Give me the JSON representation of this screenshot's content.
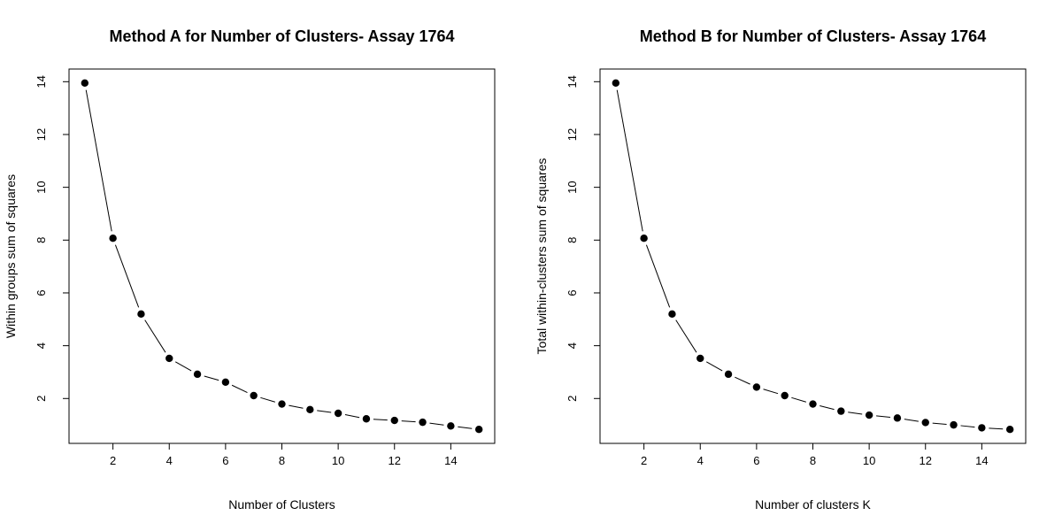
{
  "chart_data": [
    {
      "type": "line",
      "title": "Method A for Number of Clusters- Assay 1764",
      "xlabel": "Number of Clusters",
      "ylabel": "Within groups sum of squares",
      "x": [
        1,
        2,
        3,
        4,
        5,
        6,
        7,
        8,
        9,
        10,
        11,
        12,
        13,
        14,
        15
      ],
      "series": [
        {
          "values": [
            13.95,
            8.07,
            5.2,
            3.52,
            2.92,
            2.62,
            2.11,
            1.79,
            1.58,
            1.44,
            1.23,
            1.17,
            1.1,
            0.96,
            0.83
          ]
        }
      ],
      "xlim": [
        0.44,
        15.56
      ],
      "ylim": [
        0.3,
        14.48
      ],
      "xticks": [
        2,
        4,
        6,
        8,
        10,
        12,
        14
      ],
      "yticks": [
        2,
        4,
        6,
        8,
        10,
        12,
        14
      ],
      "grid": false,
      "legend": "none",
      "marker": "filled-circle"
    },
    {
      "type": "line",
      "title": "Method B for Number of Clusters- Assay 1764",
      "xlabel": "Number of clusters K",
      "ylabel": "Total within-clusters sum of squares",
      "x": [
        1,
        2,
        3,
        4,
        5,
        6,
        7,
        8,
        9,
        10,
        11,
        12,
        13,
        14,
        15
      ],
      "series": [
        {
          "values": [
            13.95,
            8.07,
            5.2,
            3.52,
            2.92,
            2.43,
            2.11,
            1.79,
            1.52,
            1.37,
            1.26,
            1.09,
            1.0,
            0.89,
            0.83
          ]
        }
      ],
      "xlim": [
        0.44,
        15.56
      ],
      "ylim": [
        0.3,
        14.48
      ],
      "xticks": [
        2,
        4,
        6,
        8,
        10,
        12,
        14
      ],
      "yticks": [
        2,
        4,
        6,
        8,
        10,
        12,
        14
      ],
      "grid": false,
      "legend": "none",
      "marker": "filled-circle"
    }
  ]
}
